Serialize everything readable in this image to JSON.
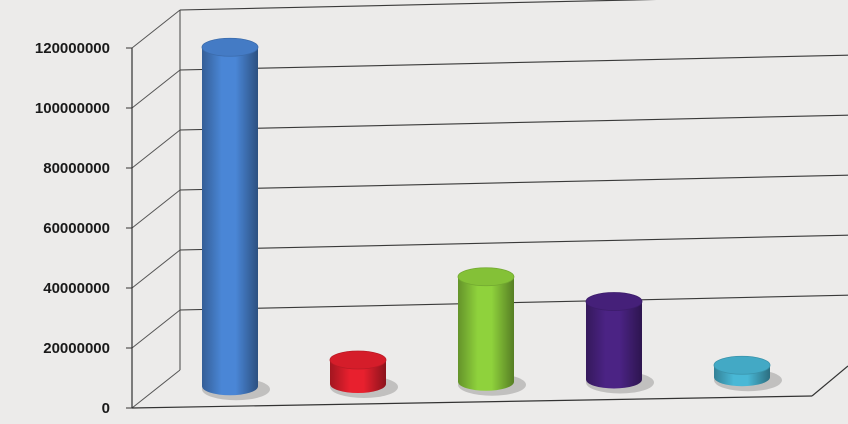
{
  "chart_data": {
    "type": "bar",
    "style": "3d-cylinder",
    "title": "",
    "xlabel": "",
    "ylabel": "",
    "ylim": [
      0,
      120000000
    ],
    "yticks": [
      0,
      20000000,
      40000000,
      60000000,
      80000000,
      100000000,
      120000000
    ],
    "ytick_labels": [
      "0",
      "20000000",
      "40000000",
      "60000000",
      "80000000",
      "100000000",
      "120000000"
    ],
    "grid": true,
    "legend": "none",
    "categories": [
      "",
      "",
      "",
      "",
      ""
    ],
    "values": [
      113000000,
      8000000,
      35000000,
      26000000,
      4000000
    ],
    "colors": [
      "#4a86d6",
      "#e8202e",
      "#8fd23c",
      "#4b2384",
      "#49b8d6"
    ]
  }
}
